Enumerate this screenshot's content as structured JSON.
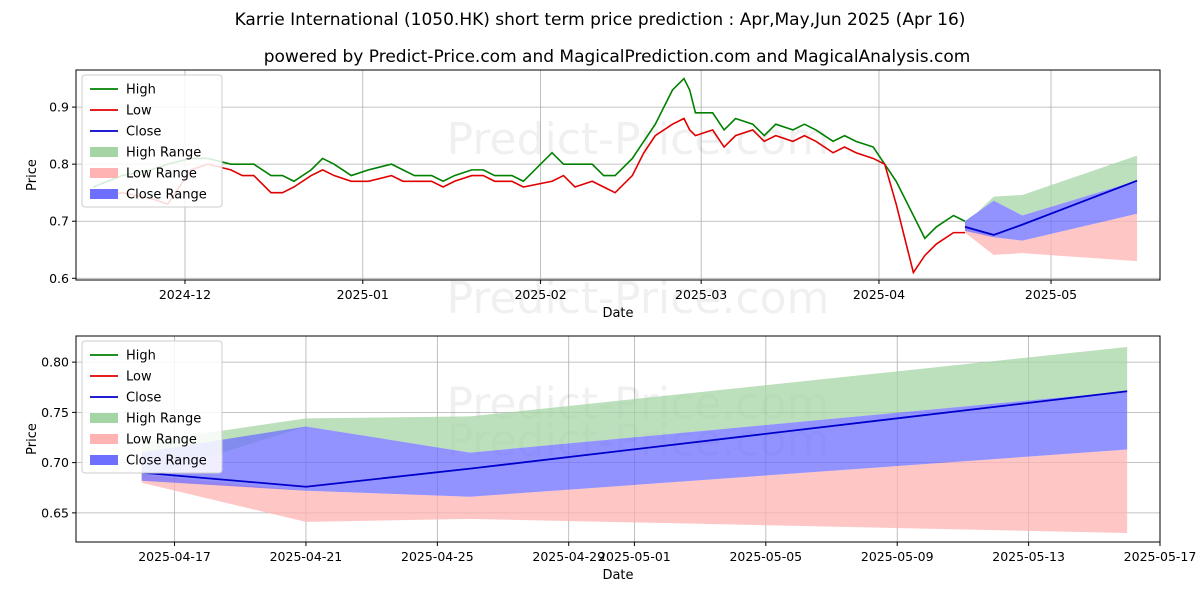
{
  "title": "Karrie International (1050.HK) short term price prediction : Apr,May,Jun 2025 (Apr 16)",
  "subtitle": "powered by Predict-Price.com and MagicalPrediction.com and MagicalAnalysis.com",
  "watermark": "Predict-Price.com",
  "colors": {
    "high": "#008000",
    "low": "#e00000",
    "close": "#0000cc",
    "high_range": "#a5d4a5",
    "low_range": "#ffb3b3",
    "close_range": "#6f6fff",
    "grid": "#b0b0b0"
  },
  "chart_data": [
    {
      "type": "line",
      "xlabel": "Date",
      "ylabel": "Price",
      "x_ticks": [
        "2024-12",
        "2025-01",
        "2025-02",
        "2025-03",
        "2025-04",
        "2025-05"
      ],
      "y_ticks": [
        "0.6",
        "0.7",
        "0.8",
        "0.9"
      ],
      "ylim": [
        0.597,
        0.965
      ],
      "xlim": [
        "2024-11-12",
        "2025-05-20"
      ],
      "grid": true,
      "legend_position": "top-left",
      "legend": [
        "High",
        "Low",
        "Close",
        "High Range",
        "Low Range",
        "Close Range"
      ],
      "series": [
        {
          "name": "High",
          "x": [
            "2024-11-15",
            "2024-11-20",
            "2024-11-25",
            "2024-11-28",
            "2024-12-02",
            "2024-12-05",
            "2024-12-09",
            "2024-12-11",
            "2024-12-13",
            "2024-12-16",
            "2024-12-18",
            "2024-12-20",
            "2024-12-23",
            "2024-12-25",
            "2024-12-27",
            "2024-12-30",
            "2025-01-02",
            "2025-01-06",
            "2025-01-08",
            "2025-01-10",
            "2025-01-13",
            "2025-01-15",
            "2025-01-17",
            "2025-01-20",
            "2025-01-22",
            "2025-01-24",
            "2025-01-27",
            "2025-01-29",
            "2025-02-03",
            "2025-02-05",
            "2025-02-07",
            "2025-02-10",
            "2025-02-12",
            "2025-02-14",
            "2025-02-17",
            "2025-02-19",
            "2025-02-21",
            "2025-02-24",
            "2025-02-26",
            "2025-02-27",
            "2025-02-28",
            "2025-03-03",
            "2025-03-05",
            "2025-03-07",
            "2025-03-10",
            "2025-03-12",
            "2025-03-14",
            "2025-03-17",
            "2025-03-19",
            "2025-03-21",
            "2025-03-24",
            "2025-03-26",
            "2025-03-28",
            "2025-03-31",
            "2025-04-02",
            "2025-04-04",
            "2025-04-07",
            "2025-04-09",
            "2025-04-11",
            "2025-04-14",
            "2025-04-16"
          ],
          "values": [
            0.76,
            0.78,
            0.79,
            0.8,
            0.81,
            0.81,
            0.8,
            0.8,
            0.8,
            0.78,
            0.78,
            0.77,
            0.79,
            0.81,
            0.8,
            0.78,
            0.79,
            0.8,
            0.79,
            0.78,
            0.78,
            0.77,
            0.78,
            0.79,
            0.79,
            0.78,
            0.78,
            0.77,
            0.82,
            0.8,
            0.8,
            0.8,
            0.78,
            0.78,
            0.81,
            0.84,
            0.87,
            0.93,
            0.95,
            0.93,
            0.89,
            0.89,
            0.86,
            0.88,
            0.87,
            0.85,
            0.87,
            0.86,
            0.87,
            0.86,
            0.84,
            0.85,
            0.84,
            0.83,
            0.8,
            0.77,
            0.71,
            0.67,
            0.69,
            0.71,
            0.7
          ]
        },
        {
          "name": "Low",
          "x": [
            "2024-11-15",
            "2024-11-20",
            "2024-11-25",
            "2024-11-28",
            "2024-12-02",
            "2024-12-05",
            "2024-12-09",
            "2024-12-11",
            "2024-12-13",
            "2024-12-16",
            "2024-12-18",
            "2024-12-20",
            "2024-12-23",
            "2024-12-25",
            "2024-12-27",
            "2024-12-30",
            "2025-01-02",
            "2025-01-06",
            "2025-01-08",
            "2025-01-10",
            "2025-01-13",
            "2025-01-15",
            "2025-01-17",
            "2025-01-20",
            "2025-01-22",
            "2025-01-24",
            "2025-01-27",
            "2025-01-29",
            "2025-02-03",
            "2025-02-05",
            "2025-02-07",
            "2025-02-10",
            "2025-02-12",
            "2025-02-14",
            "2025-02-17",
            "2025-02-19",
            "2025-02-21",
            "2025-02-24",
            "2025-02-26",
            "2025-02-27",
            "2025-02-28",
            "2025-03-03",
            "2025-03-05",
            "2025-03-07",
            "2025-03-10",
            "2025-03-12",
            "2025-03-14",
            "2025-03-17",
            "2025-03-19",
            "2025-03-21",
            "2025-03-24",
            "2025-03-26",
            "2025-03-28",
            "2025-03-31",
            "2025-04-02",
            "2025-04-04",
            "2025-04-07",
            "2025-04-09",
            "2025-04-11",
            "2025-04-14",
            "2025-04-16"
          ],
          "values": [
            0.74,
            0.75,
            0.74,
            0.73,
            0.79,
            0.8,
            0.79,
            0.78,
            0.78,
            0.75,
            0.75,
            0.76,
            0.78,
            0.79,
            0.78,
            0.77,
            0.77,
            0.78,
            0.77,
            0.77,
            0.77,
            0.76,
            0.77,
            0.78,
            0.78,
            0.77,
            0.77,
            0.76,
            0.77,
            0.78,
            0.76,
            0.77,
            0.76,
            0.75,
            0.78,
            0.82,
            0.85,
            0.87,
            0.88,
            0.86,
            0.85,
            0.86,
            0.83,
            0.85,
            0.86,
            0.84,
            0.85,
            0.84,
            0.85,
            0.84,
            0.82,
            0.83,
            0.82,
            0.81,
            0.8,
            0.73,
            0.61,
            0.64,
            0.66,
            0.68,
            0.68
          ]
        }
      ],
      "forecast": {
        "x": [
          "2025-04-16",
          "2025-04-21",
          "2025-04-26",
          "2025-05-16"
        ],
        "high_range": {
          "upper": [
            0.695,
            0.743,
            0.746,
            0.815
          ],
          "lower": [
            0.695,
            0.743,
            0.746,
            0.815
          ]
        },
        "low_range": {
          "upper": [
            0.695,
            0.672,
            0.666,
            0.713
          ],
          "lower": [
            0.68,
            0.641,
            0.644,
            0.63
          ]
        },
        "close_range": {
          "upper": [
            0.7,
            0.736,
            0.71,
            0.771
          ],
          "lower": [
            0.683,
            0.672,
            0.666,
            0.713
          ]
        },
        "close": [
          0.69,
          0.676,
          0.694,
          0.771
        ]
      }
    },
    {
      "type": "line",
      "xlabel": "Date",
      "ylabel": "Price",
      "x_ticks": [
        "2025-04-17",
        "2025-04-21",
        "2025-04-25",
        "2025-04-29",
        "2025-05-01",
        "2025-05-05",
        "2025-05-09",
        "2025-05-13",
        "2025-05-17"
      ],
      "y_ticks": [
        "0.65",
        "0.70",
        "0.75",
        "0.80"
      ],
      "ylim": [
        0.621,
        0.826
      ],
      "xlim": [
        "2025-04-14",
        "2025-05-17"
      ],
      "grid": true,
      "legend_position": "top-left",
      "legend": [
        "High",
        "Low",
        "Close",
        "High Range",
        "Low Range",
        "Close Range"
      ],
      "series": [
        {
          "name": "High",
          "x": [
            "2025-04-16"
          ],
          "values": [
            0.695
          ]
        },
        {
          "name": "Low",
          "x": [
            "2025-04-16"
          ],
          "values": [
            0.68
          ]
        }
      ],
      "forecast": {
        "x": [
          "2025-04-16",
          "2025-04-21",
          "2025-04-26",
          "2025-05-16"
        ],
        "high_range": {
          "upper": [
            0.72,
            0.744,
            0.746,
            0.815
          ],
          "lower": [
            0.685,
            0.736,
            0.71,
            0.771
          ]
        },
        "low_range": {
          "upper": [
            0.688,
            0.672,
            0.666,
            0.713
          ],
          "lower": [
            0.68,
            0.641,
            0.644,
            0.63
          ]
        },
        "close_range": {
          "upper": [
            0.71,
            0.736,
            0.71,
            0.771
          ],
          "lower": [
            0.682,
            0.672,
            0.666,
            0.713
          ]
        },
        "close": [
          0.69,
          0.676,
          0.694,
          0.771
        ]
      }
    }
  ]
}
